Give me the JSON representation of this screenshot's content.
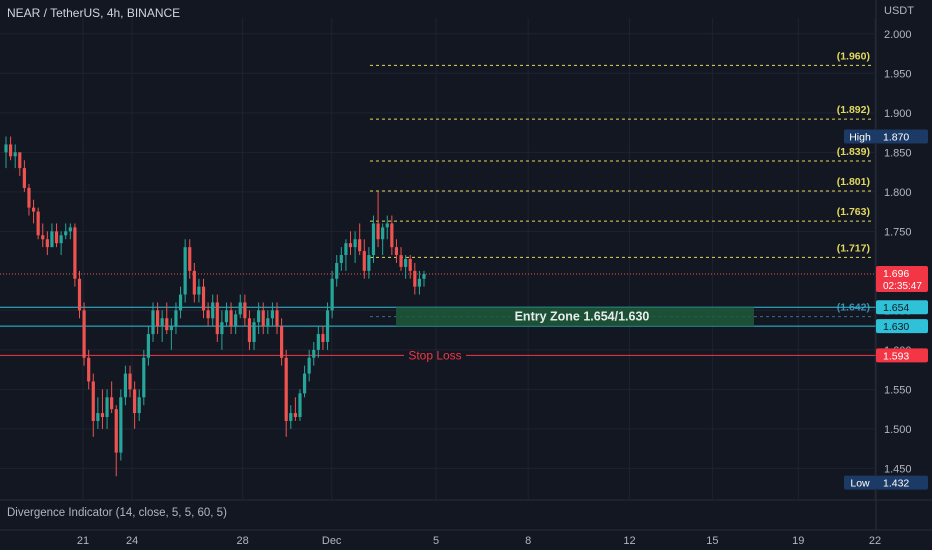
{
  "header": {
    "symbol_title": "NEAR / TetherUS, 4h, BINANCE",
    "currency": "USDT"
  },
  "indicator_label": "Divergence Indicator (14, close, 5, 5, 60, 5)",
  "colors": {
    "background": "#131722",
    "up": "#26a69a",
    "down": "#ef5350",
    "fib": "#e2d95c",
    "zone_fill": "#1e5a3a",
    "cyan": "#2ec1d8",
    "stop": "#f23645",
    "badge_blue": "#1c3a66"
  },
  "chart_data": {
    "type": "candlestick",
    "y_axis": {
      "range": [
        1.41,
        2.02
      ],
      "ticks": [
        "2.000",
        "1.950",
        "1.900",
        "1.850",
        "1.800",
        "1.750",
        "1.650",
        "1.600",
        "1.550",
        "1.500",
        "1.450"
      ]
    },
    "x_axis": {
      "ticks": [
        "21",
        "24",
        "28",
        "Dec",
        "5",
        "8",
        "12",
        "15",
        "19",
        "22"
      ]
    },
    "fib_levels": [
      {
        "label": "(1.960)",
        "value": 1.96
      },
      {
        "label": "(1.892)",
        "value": 1.892
      },
      {
        "label": "(1.839)",
        "value": 1.839
      },
      {
        "label": "(1.801)",
        "value": 1.801
      },
      {
        "label": "(1.763)",
        "value": 1.763
      },
      {
        "label": "(1.717)",
        "value": 1.717
      },
      {
        "label": "(1.642)",
        "value": 1.642
      }
    ],
    "entry_zone": {
      "label": "Entry Zone  1.654/1.630",
      "top": 1.654,
      "bottom": 1.63
    },
    "stop_loss": {
      "label": "Stop Loss",
      "value": 1.593
    },
    "price_badges": [
      {
        "label": "",
        "value": "1.870",
        "ref": 1.87,
        "kind": "high",
        "tag": "High"
      },
      {
        "label": "",
        "value": "1.696",
        "ref": 1.696,
        "kind": "current",
        "countdown": "02:35:47"
      },
      {
        "label": "",
        "value": "1.654",
        "ref": 1.654,
        "kind": "cyan"
      },
      {
        "label": "",
        "value": "1.630",
        "ref": 1.63,
        "kind": "cyan"
      },
      {
        "label": "",
        "value": "1.593",
        "ref": 1.593,
        "kind": "stop"
      },
      {
        "label": "",
        "value": "1.432",
        "ref": 1.432,
        "kind": "low",
        "tag": "Low"
      }
    ],
    "current_price": 1.696,
    "candles": [
      [
        1.85,
        1.87,
        1.83,
        1.86
      ],
      [
        1.86,
        1.87,
        1.84,
        1.845
      ],
      [
        1.845,
        1.86,
        1.83,
        1.85
      ],
      [
        1.85,
        1.85,
        1.82,
        1.83
      ],
      [
        1.83,
        1.84,
        1.8,
        1.805
      ],
      [
        1.805,
        1.81,
        1.77,
        1.78
      ],
      [
        1.78,
        1.79,
        1.76,
        1.775
      ],
      [
        1.775,
        1.78,
        1.74,
        1.745
      ],
      [
        1.745,
        1.76,
        1.73,
        1.74
      ],
      [
        1.74,
        1.75,
        1.72,
        1.73
      ],
      [
        1.73,
        1.76,
        1.73,
        1.75
      ],
      [
        1.75,
        1.76,
        1.73,
        1.735
      ],
      [
        1.735,
        1.75,
        1.72,
        1.745
      ],
      [
        1.745,
        1.76,
        1.74,
        1.75
      ],
      [
        1.75,
        1.76,
        1.74,
        1.755
      ],
      [
        1.755,
        1.76,
        1.68,
        1.69
      ],
      [
        1.69,
        1.7,
        1.64,
        1.65
      ],
      [
        1.65,
        1.66,
        1.58,
        1.59
      ],
      [
        1.59,
        1.6,
        1.55,
        1.56
      ],
      [
        1.56,
        1.57,
        1.49,
        1.51
      ],
      [
        1.51,
        1.54,
        1.5,
        1.52
      ],
      [
        1.52,
        1.55,
        1.5,
        1.515
      ],
      [
        1.515,
        1.55,
        1.5,
        1.54
      ],
      [
        1.54,
        1.56,
        1.52,
        1.525
      ],
      [
        1.525,
        1.53,
        1.44,
        1.47
      ],
      [
        1.47,
        1.55,
        1.46,
        1.54
      ],
      [
        1.54,
        1.58,
        1.53,
        1.57
      ],
      [
        1.57,
        1.58,
        1.54,
        1.55
      ],
      [
        1.55,
        1.56,
        1.5,
        1.52
      ],
      [
        1.52,
        1.55,
        1.51,
        1.54
      ],
      [
        1.54,
        1.6,
        1.53,
        1.59
      ],
      [
        1.59,
        1.63,
        1.58,
        1.62
      ],
      [
        1.62,
        1.66,
        1.61,
        1.65
      ],
      [
        1.65,
        1.66,
        1.62,
        1.63
      ],
      [
        1.63,
        1.65,
        1.61,
        1.64
      ],
      [
        1.64,
        1.66,
        1.62,
        1.625
      ],
      [
        1.625,
        1.64,
        1.6,
        1.63
      ],
      [
        1.63,
        1.66,
        1.62,
        1.65
      ],
      [
        1.65,
        1.68,
        1.64,
        1.67
      ],
      [
        1.67,
        1.74,
        1.66,
        1.73
      ],
      [
        1.73,
        1.74,
        1.69,
        1.7
      ],
      [
        1.7,
        1.71,
        1.66,
        1.67
      ],
      [
        1.67,
        1.69,
        1.66,
        1.68
      ],
      [
        1.68,
        1.69,
        1.64,
        1.65
      ],
      [
        1.65,
        1.66,
        1.63,
        1.64
      ],
      [
        1.64,
        1.67,
        1.63,
        1.66
      ],
      [
        1.66,
        1.67,
        1.61,
        1.62
      ],
      [
        1.62,
        1.65,
        1.6,
        1.635
      ],
      [
        1.635,
        1.66,
        1.63,
        1.65
      ],
      [
        1.65,
        1.66,
        1.62,
        1.63
      ],
      [
        1.63,
        1.65,
        1.62,
        1.645
      ],
      [
        1.645,
        1.67,
        1.64,
        1.66
      ],
      [
        1.66,
        1.67,
        1.63,
        1.64
      ],
      [
        1.64,
        1.65,
        1.6,
        1.61
      ],
      [
        1.61,
        1.64,
        1.6,
        1.635
      ],
      [
        1.635,
        1.66,
        1.62,
        1.65
      ],
      [
        1.65,
        1.66,
        1.62,
        1.63
      ],
      [
        1.63,
        1.65,
        1.62,
        1.64
      ],
      [
        1.64,
        1.66,
        1.63,
        1.65
      ],
      [
        1.65,
        1.66,
        1.62,
        1.63
      ],
      [
        1.63,
        1.64,
        1.58,
        1.59
      ],
      [
        1.59,
        1.6,
        1.49,
        1.51
      ],
      [
        1.51,
        1.53,
        1.5,
        1.52
      ],
      [
        1.52,
        1.54,
        1.51,
        1.515
      ],
      [
        1.515,
        1.55,
        1.51,
        1.545
      ],
      [
        1.545,
        1.58,
        1.54,
        1.57
      ],
      [
        1.57,
        1.6,
        1.56,
        1.59
      ],
      [
        1.59,
        1.61,
        1.58,
        1.6
      ],
      [
        1.6,
        1.63,
        1.59,
        1.62
      ],
      [
        1.62,
        1.63,
        1.6,
        1.61
      ],
      [
        1.61,
        1.66,
        1.6,
        1.65
      ],
      [
        1.65,
        1.7,
        1.64,
        1.69
      ],
      [
        1.69,
        1.72,
        1.68,
        1.71
      ],
      [
        1.71,
        1.73,
        1.7,
        1.72
      ],
      [
        1.72,
        1.74,
        1.7,
        1.735
      ],
      [
        1.735,
        1.75,
        1.72,
        1.73
      ],
      [
        1.73,
        1.75,
        1.71,
        1.74
      ],
      [
        1.74,
        1.76,
        1.72,
        1.725
      ],
      [
        1.725,
        1.74,
        1.69,
        1.7
      ],
      [
        1.7,
        1.73,
        1.69,
        1.72
      ],
      [
        1.72,
        1.77,
        1.71,
        1.76
      ],
      [
        1.76,
        1.8,
        1.73,
        1.74
      ],
      [
        1.74,
        1.76,
        1.72,
        1.755
      ],
      [
        1.755,
        1.77,
        1.74,
        1.76
      ],
      [
        1.76,
        1.77,
        1.72,
        1.73
      ],
      [
        1.73,
        1.74,
        1.71,
        1.72
      ],
      [
        1.72,
        1.73,
        1.7,
        1.705
      ],
      [
        1.705,
        1.72,
        1.69,
        1.715
      ],
      [
        1.715,
        1.72,
        1.69,
        1.7
      ],
      [
        1.7,
        1.71,
        1.67,
        1.68
      ],
      [
        1.68,
        1.7,
        1.67,
        1.69
      ],
      [
        1.69,
        1.7,
        1.68,
        1.696
      ]
    ]
  }
}
